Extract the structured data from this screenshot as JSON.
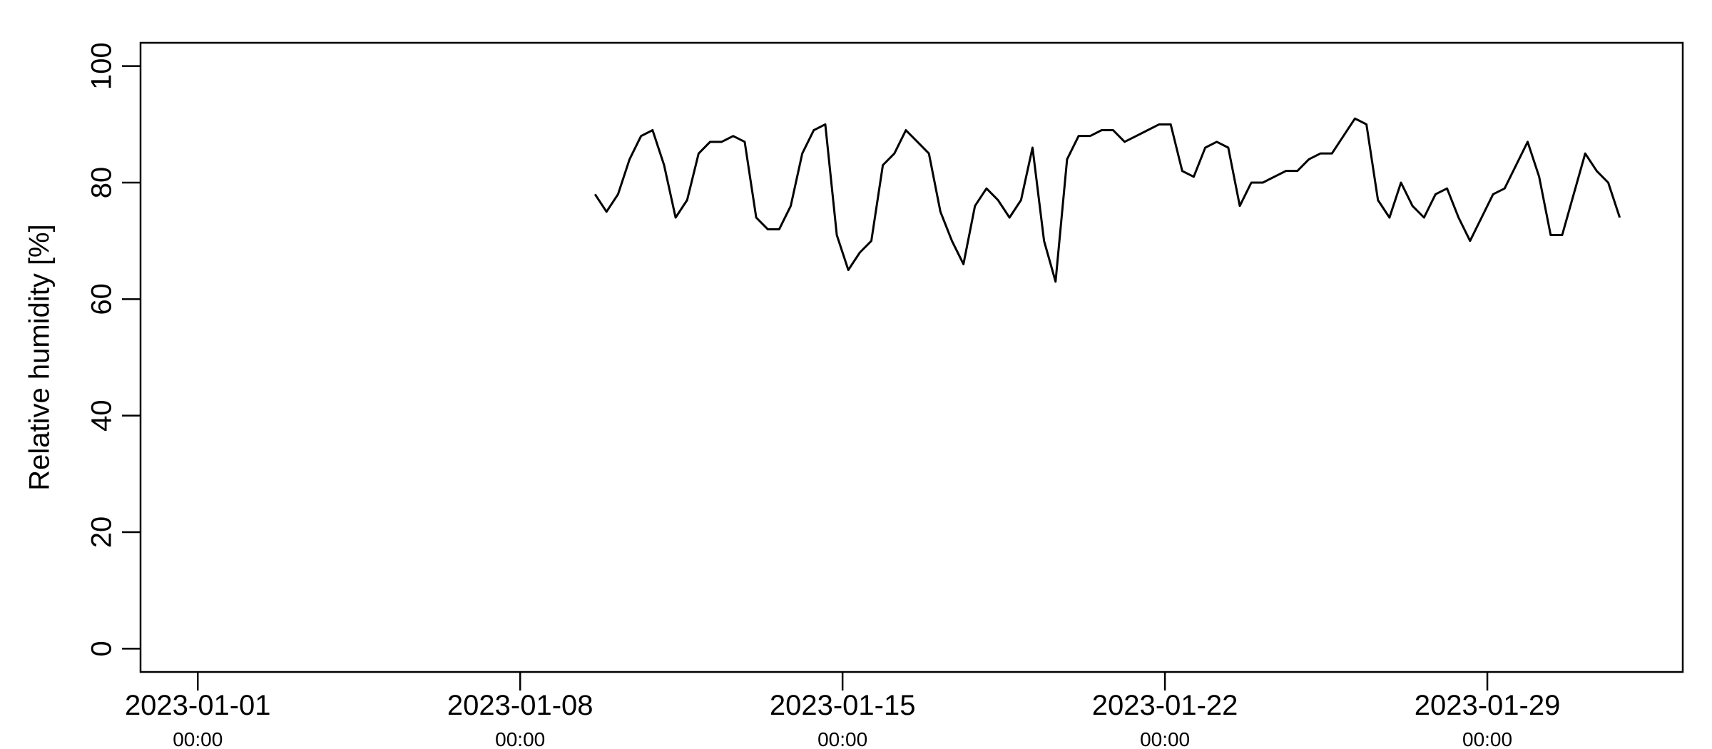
{
  "chart_data": {
    "type": "line",
    "ylabel": "Relative humidity [%]",
    "color": "#000000",
    "x": [
      "2023-01-09 15:00",
      "2023-01-09 21:00",
      "2023-01-10 03:00",
      "2023-01-10 09:00",
      "2023-01-10 15:00",
      "2023-01-10 21:00",
      "2023-01-11 03:00",
      "2023-01-11 09:00",
      "2023-01-11 15:00",
      "2023-01-11 21:00",
      "2023-01-12 03:00",
      "2023-01-12 09:00",
      "2023-01-12 15:00",
      "2023-01-12 21:00",
      "2023-01-13 03:00",
      "2023-01-13 09:00",
      "2023-01-13 15:00",
      "2023-01-13 21:00",
      "2023-01-14 03:00",
      "2023-01-14 09:00",
      "2023-01-14 15:00",
      "2023-01-14 21:00",
      "2023-01-15 03:00",
      "2023-01-15 09:00",
      "2023-01-15 15:00",
      "2023-01-15 21:00",
      "2023-01-16 03:00",
      "2023-01-16 09:00",
      "2023-01-16 15:00",
      "2023-01-16 21:00",
      "2023-01-17 03:00",
      "2023-01-17 09:00",
      "2023-01-17 15:00",
      "2023-01-17 21:00",
      "2023-01-18 03:00",
      "2023-01-18 09:00",
      "2023-01-18 15:00",
      "2023-01-18 21:00",
      "2023-01-19 03:00",
      "2023-01-19 09:00",
      "2023-01-19 15:00",
      "2023-01-19 21:00",
      "2023-01-20 03:00",
      "2023-01-20 09:00",
      "2023-01-20 15:00",
      "2023-01-20 21:00",
      "2023-01-21 03:00",
      "2023-01-21 09:00",
      "2023-01-21 15:00",
      "2023-01-21 21:00",
      "2023-01-22 03:00",
      "2023-01-22 09:00",
      "2023-01-22 15:00",
      "2023-01-22 21:00",
      "2023-01-23 03:00",
      "2023-01-23 09:00",
      "2023-01-23 15:00",
      "2023-01-23 21:00",
      "2023-01-24 03:00",
      "2023-01-24 09:00",
      "2023-01-24 15:00",
      "2023-01-24 21:00",
      "2023-01-25 03:00",
      "2023-01-25 09:00",
      "2023-01-25 15:00",
      "2023-01-25 21:00",
      "2023-01-26 03:00",
      "2023-01-26 09:00",
      "2023-01-26 15:00",
      "2023-01-26 21:00",
      "2023-01-27 03:00",
      "2023-01-27 09:00",
      "2023-01-27 15:00",
      "2023-01-27 21:00",
      "2023-01-28 03:00",
      "2023-01-28 09:00",
      "2023-01-28 15:00",
      "2023-01-28 21:00",
      "2023-01-29 03:00",
      "2023-01-29 09:00",
      "2023-01-29 15:00",
      "2023-01-29 21:00",
      "2023-01-30 03:00",
      "2023-01-30 09:00",
      "2023-01-30 15:00",
      "2023-01-30 21:00",
      "2023-01-31 03:00",
      "2023-01-31 09:00",
      "2023-01-31 15:00",
      "2023-01-31 21:00"
    ],
    "y": [
      78,
      75,
      78,
      84,
      88,
      89,
      83,
      74,
      77,
      85,
      87,
      87,
      88,
      87,
      74,
      72,
      72,
      76,
      85,
      89,
      90,
      71,
      65,
      68,
      70,
      83,
      85,
      89,
      87,
      85,
      75,
      70,
      66,
      76,
      79,
      77,
      74,
      77,
      86,
      70,
      63,
      84,
      88,
      88,
      89,
      89,
      87,
      88,
      89,
      90,
      90,
      82,
      81,
      86,
      87,
      86,
      76,
      80,
      80,
      81,
      82,
      82,
      84,
      85,
      85,
      88,
      91,
      90,
      77,
      74,
      80,
      76,
      74,
      78,
      79,
      74,
      70,
      74,
      78,
      79,
      83,
      87,
      81,
      71,
      71,
      78,
      85,
      82,
      80,
      74
    ],
    "xlim": [
      "2022-12-30 18:10",
      "2023-02-02 05:50"
    ],
    "ylim": [
      -4,
      104
    ],
    "xticks": [
      {
        "value": "2023-01-01 00:00",
        "label": "2023-01-01\n00:00"
      },
      {
        "value": "2023-01-08 00:00",
        "label": "2023-01-08\n00:00"
      },
      {
        "value": "2023-01-15 00:00",
        "label": "2023-01-15\n00:00"
      },
      {
        "value": "2023-01-22 00:00",
        "label": "2023-01-22\n00:00"
      },
      {
        "value": "2023-01-29 00:00",
        "label": "2023-01-29\n00:00"
      }
    ],
    "yticks": [
      0,
      20,
      40,
      60,
      80,
      100
    ]
  }
}
